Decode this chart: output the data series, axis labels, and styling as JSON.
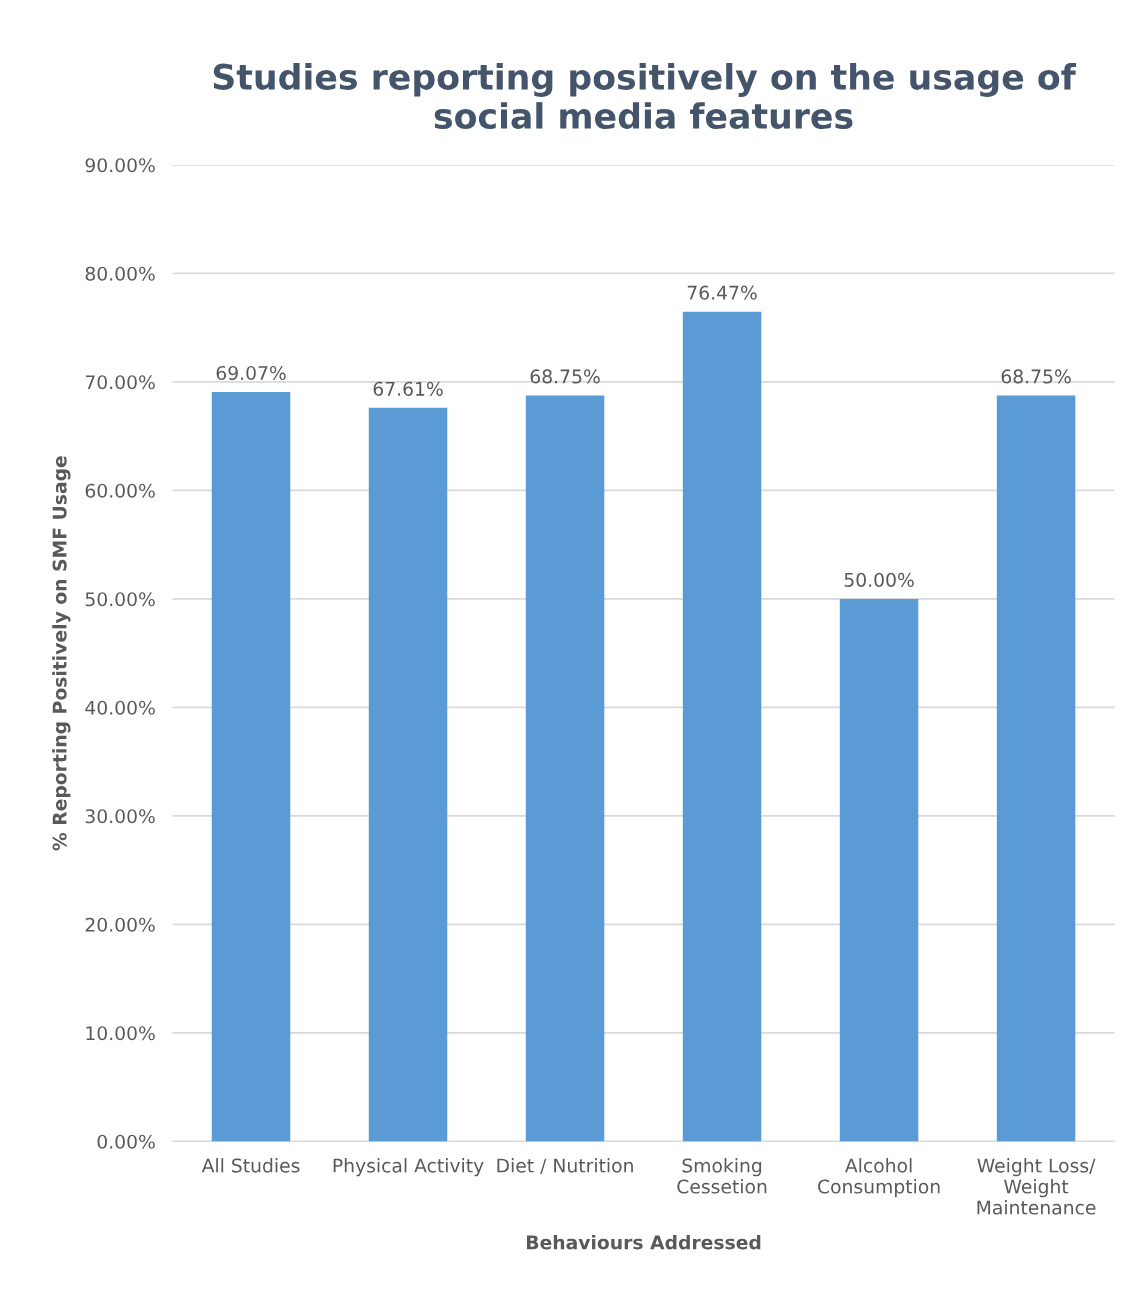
{
  "chart_data": {
    "type": "bar",
    "title": "Studies reporting positively on the usage of social media features",
    "xlabel": "Behaviours Addressed",
    "ylabel": "% Reporting Positively on SMF Usage",
    "categories": [
      "All Studies",
      "Physical Activity",
      "Diet / Nutrition",
      "Smoking\nCessetion",
      "Alcohol\nConsumption",
      "Weight Loss/\nWeight\nMaintenance"
    ],
    "values": [
      69.07,
      67.61,
      68.75,
      76.47,
      50.0,
      68.75
    ],
    "value_labels": [
      "69.07%",
      "67.61%",
      "68.75%",
      "76.47%",
      "50.00%",
      "68.75%"
    ],
    "color": "#5b9bd5",
    "ylim": [
      0,
      90
    ],
    "yticks": [
      {
        "value": 0,
        "label": "0.00%"
      },
      {
        "value": 10,
        "label": "10.00%"
      },
      {
        "value": 20,
        "label": "20.00%"
      },
      {
        "value": 30,
        "label": "30.00%"
      },
      {
        "value": 40,
        "label": "40.00%"
      },
      {
        "value": 50,
        "label": "50.00%"
      },
      {
        "value": 60,
        "label": "60.00%"
      },
      {
        "value": 70,
        "label": "70.00%"
      },
      {
        "value": 80,
        "label": "80.00%"
      },
      {
        "value": 90,
        "label": "90.00%"
      }
    ],
    "grid": "y",
    "legend": false
  }
}
